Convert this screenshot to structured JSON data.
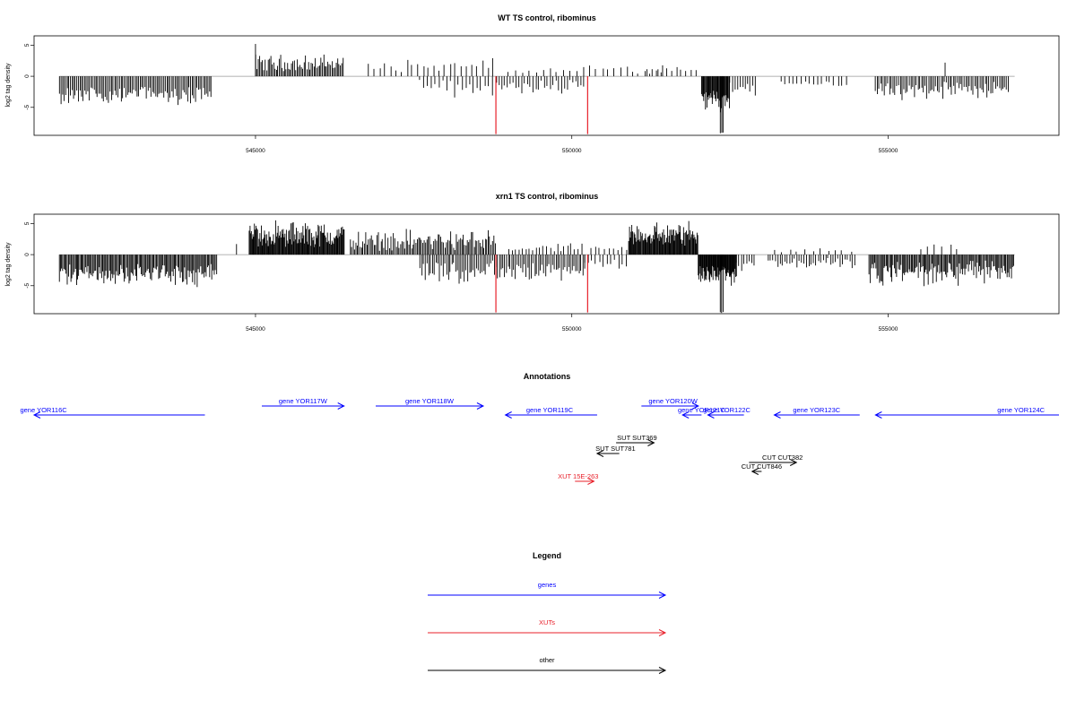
{
  "chart_data": [
    {
      "type": "bar",
      "title": "WT TS control, ribominus",
      "ylabel": "log2 tag density",
      "xlim": [
        541500,
        557700
      ],
      "ylim": [
        -9.5,
        6.5
      ],
      "x_ticks": [
        545000,
        550000,
        555000
      ],
      "y_ticks": [
        5,
        0,
        -5
      ],
      "grid": false,
      "colors": {
        "bars": "#000000",
        "highlight": "#e8202a",
        "baseline": "#999999",
        "frame": "#000000"
      },
      "segments": [
        {
          "start": 541900,
          "end": 544300,
          "sign": -1,
          "min": 1.5,
          "max": 5.0,
          "step": 25
        },
        {
          "start": 545000,
          "end": 546400,
          "sign": 1,
          "min": 0.8,
          "max": 3.8,
          "step": 22
        },
        {
          "start": 545000,
          "end": 545000,
          "sign": 1,
          "min": 5.2,
          "max": 5.2,
          "step": 1
        },
        {
          "start": 546800,
          "end": 548800,
          "sign": 1,
          "min": 0.5,
          "max": 3.2,
          "step": 85
        },
        {
          "start": 547600,
          "end": 548800,
          "sign": -1,
          "min": 0.3,
          "max": 3.6,
          "step": 60
        },
        {
          "start": 548800,
          "end": 550200,
          "sign": -1,
          "min": 0.6,
          "max": 3.2,
          "step": 45
        },
        {
          "start": 549000,
          "end": 550100,
          "sign": 1,
          "min": 0.4,
          "max": 1.6,
          "step": 110
        },
        {
          "start": 550200,
          "end": 551500,
          "sign": 1,
          "min": 0.4,
          "max": 2.4,
          "step": 95
        },
        {
          "start": 551200,
          "end": 552000,
          "sign": 1,
          "min": 0.5,
          "max": 2.2,
          "step": 75
        },
        {
          "start": 552050,
          "end": 552500,
          "sign": -1,
          "min": 2.0,
          "max": 6.0,
          "step": 12
        },
        {
          "start": 552350,
          "end": 552400,
          "sign": -1,
          "min": 9.0,
          "max": 9.2,
          "step": 20
        },
        {
          "start": 552500,
          "end": 552900,
          "sign": -1,
          "min": 1.0,
          "max": 3.5,
          "step": 40
        },
        {
          "start": 553300,
          "end": 554400,
          "sign": -1,
          "min": 0.6,
          "max": 2.0,
          "step": 65
        },
        {
          "start": 554800,
          "end": 556900,
          "sign": -1,
          "min": 0.8,
          "max": 4.2,
          "step": 28
        },
        {
          "start": 555900,
          "end": 555900,
          "sign": 1,
          "min": 2.2,
          "max": 2.2,
          "step": 1
        }
      ],
      "highlights": [
        {
          "x": 548800,
          "y": -9.3
        },
        {
          "x": 550250,
          "y": -9.3
        }
      ]
    },
    {
      "type": "bar",
      "title": "xrn1 TS control, ribominus",
      "ylabel": "log2 tag density",
      "xlim": [
        541500,
        557700
      ],
      "ylim": [
        -9.5,
        6.5
      ],
      "x_ticks": [
        545000,
        550000,
        555000
      ],
      "y_ticks": [
        5,
        0,
        -5
      ],
      "grid": false,
      "colors": {
        "bars": "#000000",
        "highlight": "#e8202a",
        "baseline": "#999999",
        "frame": "#000000"
      },
      "segments": [
        {
          "start": 541900,
          "end": 544400,
          "sign": -1,
          "min": 1.5,
          "max": 5.5,
          "step": 18
        },
        {
          "start": 544700,
          "end": 544700,
          "sign": 1,
          "min": 1.7,
          "max": 1.7,
          "step": 1
        },
        {
          "start": 544900,
          "end": 546400,
          "sign": 1,
          "min": 1.0,
          "max": 6.0,
          "step": 12
        },
        {
          "start": 546500,
          "end": 548800,
          "sign": 1,
          "min": 0.6,
          "max": 4.5,
          "step": 22
        },
        {
          "start": 547600,
          "end": 548800,
          "sign": -1,
          "min": 0.6,
          "max": 5.2,
          "step": 28
        },
        {
          "start": 548800,
          "end": 550200,
          "sign": -1,
          "min": 0.8,
          "max": 4.5,
          "step": 28
        },
        {
          "start": 549000,
          "end": 550200,
          "sign": 1,
          "min": 0.4,
          "max": 2.0,
          "step": 55
        },
        {
          "start": 550200,
          "end": 550900,
          "sign": -1,
          "min": 0.4,
          "max": 2.4,
          "step": 60
        },
        {
          "start": 550300,
          "end": 550900,
          "sign": 1,
          "min": 0.4,
          "max": 1.8,
          "step": 70
        },
        {
          "start": 550900,
          "end": 552000,
          "sign": 1,
          "min": 1.2,
          "max": 6.0,
          "step": 12
        },
        {
          "start": 552000,
          "end": 552600,
          "sign": -1,
          "min": 1.5,
          "max": 6.0,
          "step": 10
        },
        {
          "start": 552350,
          "end": 552400,
          "sign": -1,
          "min": 9.2,
          "max": 9.4,
          "step": 20
        },
        {
          "start": 552600,
          "end": 552900,
          "sign": -1,
          "min": 0.8,
          "max": 3.0,
          "step": 40
        },
        {
          "start": 553100,
          "end": 554500,
          "sign": -1,
          "min": 0.5,
          "max": 2.6,
          "step": 38
        },
        {
          "start": 553200,
          "end": 554500,
          "sign": 1,
          "min": 0.3,
          "max": 1.2,
          "step": 120
        },
        {
          "start": 554700,
          "end": 557000,
          "sign": -1,
          "min": 0.8,
          "max": 5.5,
          "step": 18
        },
        {
          "start": 555500,
          "end": 556200,
          "sign": 1,
          "min": 0.5,
          "max": 2.5,
          "step": 120
        }
      ],
      "highlights": [
        {
          "x": 548800,
          "y": -9.3
        },
        {
          "x": 550250,
          "y": -9.3
        }
      ]
    }
  ],
  "annotations": {
    "title": "Annotations",
    "features": [
      {
        "label": "gene YOR116C",
        "start": 541500,
        "end": 544200,
        "strand": "-",
        "row": 0,
        "color": "#0000ff",
        "label_x": 541650
      },
      {
        "label": "gene YOR117W",
        "start": 545100,
        "end": 546400,
        "strand": "+",
        "row": 1,
        "color": "#0000ff",
        "label_x": 545750
      },
      {
        "label": "gene YOR118W",
        "start": 546900,
        "end": 548600,
        "strand": "+",
        "row": 1,
        "color": "#0000ff",
        "label_x": 547750
      },
      {
        "label": "gene YOR119C",
        "start": 548950,
        "end": 550400,
        "strand": "-",
        "row": 0,
        "color": "#0000ff",
        "label_x": 549650
      },
      {
        "label": "gene YOR120W",
        "start": 551100,
        "end": 552000,
        "strand": "+",
        "row": 1,
        "color": "#0000ff",
        "label_x": 551600
      },
      {
        "label": "gene YOR121C",
        "start": 551750,
        "end": 552050,
        "strand": "-",
        "row": 0,
        "color": "#0000ff",
        "label_x": 552050
      },
      {
        "label": "gene YOR122C",
        "start": 552150,
        "end": 552720,
        "strand": "-",
        "row": 0,
        "color": "#0000ff",
        "label_x": 552450
      },
      {
        "label": "gene YOR123C",
        "start": 553200,
        "end": 554550,
        "strand": "-",
        "row": 0,
        "color": "#0000ff",
        "label_x": 553870
      },
      {
        "label": "gene YOR124C",
        "start": 554800,
        "end": 557700,
        "strand": "-",
        "row": 0,
        "color": "#0000ff",
        "label_x": 557100
      },
      {
        "label": "SUT SUT369",
        "start": 550700,
        "end": 551300,
        "strand": "+",
        "row": 2,
        "color": "#000000",
        "label_x": 551030
      },
      {
        "label": "SUT SUT781",
        "start": 550400,
        "end": 550750,
        "strand": "-",
        "row": 3,
        "color": "#000000",
        "label_x": 550690
      },
      {
        "label": "CUT CUT382",
        "start": 552800,
        "end": 553550,
        "strand": "+",
        "row": 4,
        "color": "#000000",
        "label_x": 553330
      },
      {
        "label": "CUT CUT846",
        "start": 552850,
        "end": 553000,
        "strand": "-",
        "row": 5,
        "color": "#000000",
        "label_x": 553000
      },
      {
        "label": "XUT 15E-263",
        "start": 550050,
        "end": 550350,
        "strand": "+",
        "row": 6,
        "color": "#e8202a",
        "label_x": 550100
      }
    ]
  },
  "legend": {
    "title": "Legend",
    "items": [
      {
        "label": "genes",
        "color": "#0000ff"
      },
      {
        "label": "XUTs",
        "color": "#e8202a"
      },
      {
        "label": "other",
        "color": "#000000"
      }
    ]
  }
}
